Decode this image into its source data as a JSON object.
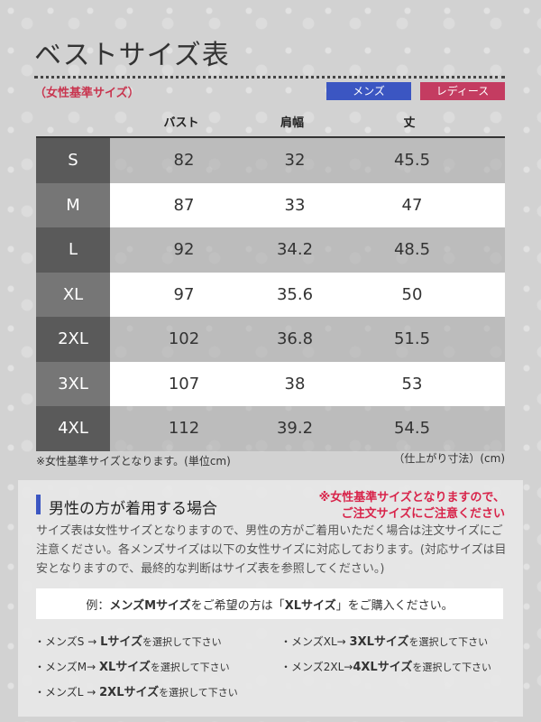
{
  "title": "ベストサイズ表",
  "subtitle": "（女性基準サイズ）",
  "legend": {
    "mens": "メンズ",
    "ladies": "レディース"
  },
  "columns": {
    "bust": "バスト",
    "shoulder": "肩幅",
    "length": "丈"
  },
  "rows": [
    {
      "size": "S",
      "bust": "82",
      "shoulder": "32",
      "length": "45.5"
    },
    {
      "size": "M",
      "bust": "87",
      "shoulder": "33",
      "length": "47"
    },
    {
      "size": "L",
      "bust": "92",
      "shoulder": "34.2",
      "length": "48.5"
    },
    {
      "size": "XL",
      "bust": "97",
      "shoulder": "35.6",
      "length": "50"
    },
    {
      "size": "2XL",
      "bust": "102",
      "shoulder": "36.8",
      "length": "51.5"
    },
    {
      "size": "3XL",
      "bust": "107",
      "shoulder": "38",
      "length": "53"
    },
    {
      "size": "4XL",
      "bust": "112",
      "shoulder": "39.2",
      "length": "54.5"
    }
  ],
  "notes": {
    "left": "※女性基準サイズとなります。(単位cm)",
    "right": "（仕上がり寸法）(cm)"
  },
  "panel": {
    "heading": "男性の方が着用する場合",
    "warning_line1": "※女性基準サイズとなりますので、",
    "warning_line2": "ご注文サイズにご注意ください",
    "body": "サイズ表は女性サイズとなりますので、男性の方がご着用いただく場合は注文サイズにご注意ください。各メンズサイズは以下の女性サイズに対応しております。(対応サイズは目安となりますので、最終的な判断はサイズ表を参照してください。)",
    "example_prefix": "例：",
    "example_bold1": "メンズMサイズ",
    "example_mid": "をご希望の方は「",
    "example_bold2": "XLサイズ",
    "example_suffix": "」をご購入ください。",
    "conversions": [
      {
        "prefix": "・メンズS → ",
        "target": "Lサイズ",
        "suffix": "を選択して下さい"
      },
      {
        "prefix": "・メンズXL→ ",
        "target": "3XLサイズ",
        "suffix": "を選択して下さい"
      },
      {
        "prefix": "・メンズM→ ",
        "target": "XLサイズ",
        "suffix": "を選択して下さい"
      },
      {
        "prefix": "・メンズ2XL→",
        "target": "4XLサイズ",
        "suffix": "を選択して下さい"
      },
      {
        "prefix": "・メンズL → ",
        "target": "2XLサイズ",
        "suffix": "を選択して下さい"
      }
    ]
  }
}
